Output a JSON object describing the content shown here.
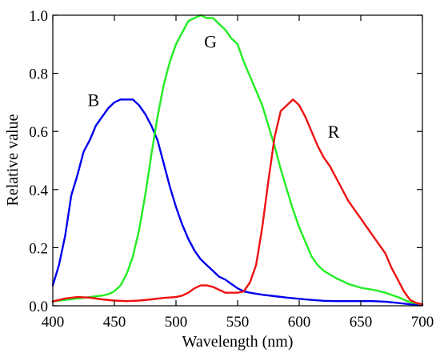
{
  "chart_data": {
    "type": "line",
    "title": "",
    "xlabel": "Wavelength (nm)",
    "ylabel": "Relative value",
    "xlim": [
      400,
      700
    ],
    "ylim": [
      0,
      1.0
    ],
    "xticks": [
      "400",
      "450",
      "500",
      "550",
      "600",
      "650",
      "700"
    ],
    "yticks": [
      "0.0",
      "0.2",
      "0.4",
      "0.6",
      "0.8",
      "1.0"
    ],
    "grid": false,
    "legend": "none",
    "series": [
      {
        "name": "B",
        "color": "#0000ee",
        "label_at": [
          433,
          0.71
        ],
        "points": [
          [
            400,
            0.07
          ],
          [
            405,
            0.14
          ],
          [
            410,
            0.24
          ],
          [
            415,
            0.38
          ],
          [
            420,
            0.45
          ],
          [
            425,
            0.53
          ],
          [
            430,
            0.57
          ],
          [
            435,
            0.62
          ],
          [
            440,
            0.65
          ],
          [
            445,
            0.68
          ],
          [
            450,
            0.7
          ],
          [
            455,
            0.71
          ],
          [
            460,
            0.71
          ],
          [
            465,
            0.71
          ],
          [
            470,
            0.69
          ],
          [
            475,
            0.66
          ],
          [
            480,
            0.62
          ],
          [
            485,
            0.57
          ],
          [
            490,
            0.49
          ],
          [
            495,
            0.41
          ],
          [
            500,
            0.34
          ],
          [
            505,
            0.28
          ],
          [
            510,
            0.23
          ],
          [
            515,
            0.19
          ],
          [
            520,
            0.16
          ],
          [
            525,
            0.14
          ],
          [
            530,
            0.12
          ],
          [
            535,
            0.1
          ],
          [
            540,
            0.09
          ],
          [
            545,
            0.075
          ],
          [
            550,
            0.06
          ],
          [
            555,
            0.05
          ],
          [
            560,
            0.045
          ],
          [
            570,
            0.038
          ],
          [
            580,
            0.033
          ],
          [
            590,
            0.028
          ],
          [
            600,
            0.024
          ],
          [
            610,
            0.02
          ],
          [
            620,
            0.017
          ],
          [
            630,
            0.016
          ],
          [
            640,
            0.016
          ],
          [
            650,
            0.016
          ],
          [
            660,
            0.016
          ],
          [
            670,
            0.014
          ],
          [
            680,
            0.01
          ],
          [
            690,
            0.005
          ],
          [
            700,
            0.003
          ]
        ]
      },
      {
        "name": "G",
        "color": "#22ee22",
        "label_at": [
          528,
          0.91
        ],
        "points": [
          [
            400,
            0.015
          ],
          [
            410,
            0.02
          ],
          [
            420,
            0.025
          ],
          [
            430,
            0.03
          ],
          [
            440,
            0.035
          ],
          [
            445,
            0.04
          ],
          [
            450,
            0.05
          ],
          [
            455,
            0.07
          ],
          [
            460,
            0.11
          ],
          [
            465,
            0.17
          ],
          [
            470,
            0.26
          ],
          [
            475,
            0.38
          ],
          [
            480,
            0.52
          ],
          [
            485,
            0.65
          ],
          [
            490,
            0.76
          ],
          [
            495,
            0.84
          ],
          [
            500,
            0.9
          ],
          [
            505,
            0.94
          ],
          [
            510,
            0.98
          ],
          [
            515,
            0.99
          ],
          [
            520,
            1.0
          ],
          [
            525,
            0.99
          ],
          [
            530,
            0.99
          ],
          [
            535,
            0.97
          ],
          [
            540,
            0.95
          ],
          [
            545,
            0.92
          ],
          [
            550,
            0.9
          ],
          [
            555,
            0.84
          ],
          [
            560,
            0.79
          ],
          [
            565,
            0.74
          ],
          [
            570,
            0.69
          ],
          [
            575,
            0.62
          ],
          [
            580,
            0.55
          ],
          [
            585,
            0.47
          ],
          [
            590,
            0.4
          ],
          [
            595,
            0.33
          ],
          [
            600,
            0.27
          ],
          [
            605,
            0.22
          ],
          [
            610,
            0.17
          ],
          [
            615,
            0.14
          ],
          [
            620,
            0.12
          ],
          [
            630,
            0.095
          ],
          [
            640,
            0.075
          ],
          [
            650,
            0.062
          ],
          [
            660,
            0.055
          ],
          [
            670,
            0.045
          ],
          [
            680,
            0.03
          ],
          [
            690,
            0.012
          ],
          [
            700,
            0.005
          ]
        ]
      },
      {
        "name": "R",
        "color": "#ee1111",
        "label_at": [
          628,
          0.6
        ],
        "points": [
          [
            400,
            0.015
          ],
          [
            410,
            0.025
          ],
          [
            420,
            0.03
          ],
          [
            430,
            0.028
          ],
          [
            440,
            0.022
          ],
          [
            450,
            0.018
          ],
          [
            460,
            0.016
          ],
          [
            470,
            0.018
          ],
          [
            480,
            0.022
          ],
          [
            490,
            0.027
          ],
          [
            500,
            0.03
          ],
          [
            505,
            0.035
          ],
          [
            510,
            0.045
          ],
          [
            515,
            0.06
          ],
          [
            520,
            0.07
          ],
          [
            525,
            0.07
          ],
          [
            530,
            0.065
          ],
          [
            535,
            0.055
          ],
          [
            540,
            0.045
          ],
          [
            545,
            0.045
          ],
          [
            550,
            0.045
          ],
          [
            555,
            0.05
          ],
          [
            560,
            0.08
          ],
          [
            565,
            0.14
          ],
          [
            570,
            0.27
          ],
          [
            575,
            0.43
          ],
          [
            580,
            0.58
          ],
          [
            585,
            0.67
          ],
          [
            590,
            0.69
          ],
          [
            595,
            0.71
          ],
          [
            600,
            0.69
          ],
          [
            605,
            0.65
          ],
          [
            610,
            0.6
          ],
          [
            615,
            0.55
          ],
          [
            620,
            0.51
          ],
          [
            625,
            0.48
          ],
          [
            630,
            0.44
          ],
          [
            635,
            0.4
          ],
          [
            640,
            0.36
          ],
          [
            645,
            0.33
          ],
          [
            650,
            0.3
          ],
          [
            655,
            0.27
          ],
          [
            660,
            0.24
          ],
          [
            665,
            0.21
          ],
          [
            670,
            0.18
          ],
          [
            675,
            0.13
          ],
          [
            680,
            0.09
          ],
          [
            685,
            0.05
          ],
          [
            690,
            0.02
          ],
          [
            695,
            0.01
          ],
          [
            700,
            0.005
          ]
        ]
      }
    ]
  }
}
